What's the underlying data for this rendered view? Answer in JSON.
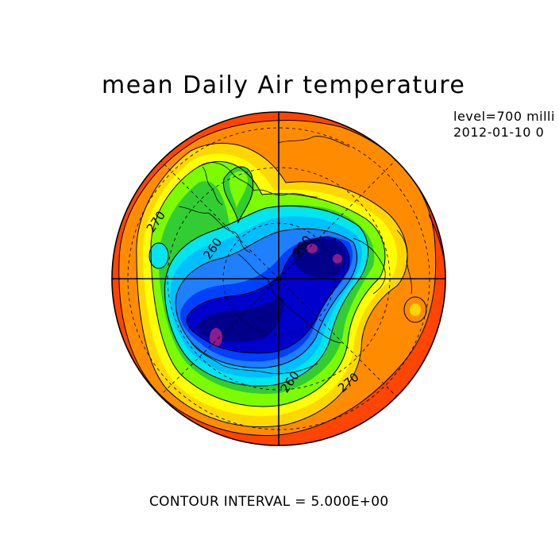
{
  "title": "mean Daily Air temperature",
  "subtitle_lines": [
    "level=700 milli",
    "2012-01-10 0"
  ],
  "footer": "CONTOUR INTERVAL = 5.000E+00",
  "contour_labels": [
    "270",
    "260",
    "260",
    "260",
    "270"
  ],
  "colors": {
    "red": "#ee2c2c",
    "orange_red": "#ff4500",
    "orange": "#ff8c00",
    "gold": "#ffd700",
    "yellow": "#ffff00",
    "green_light": "#7cfc00",
    "green": "#32cd32",
    "cyan": "#00e5ee",
    "sky": "#00bfff",
    "blue": "#1e7fff",
    "royal": "#0040ff",
    "dark_blue": "#0000cd",
    "navy": "#00008b",
    "purple": "#8b1c8b"
  }
}
